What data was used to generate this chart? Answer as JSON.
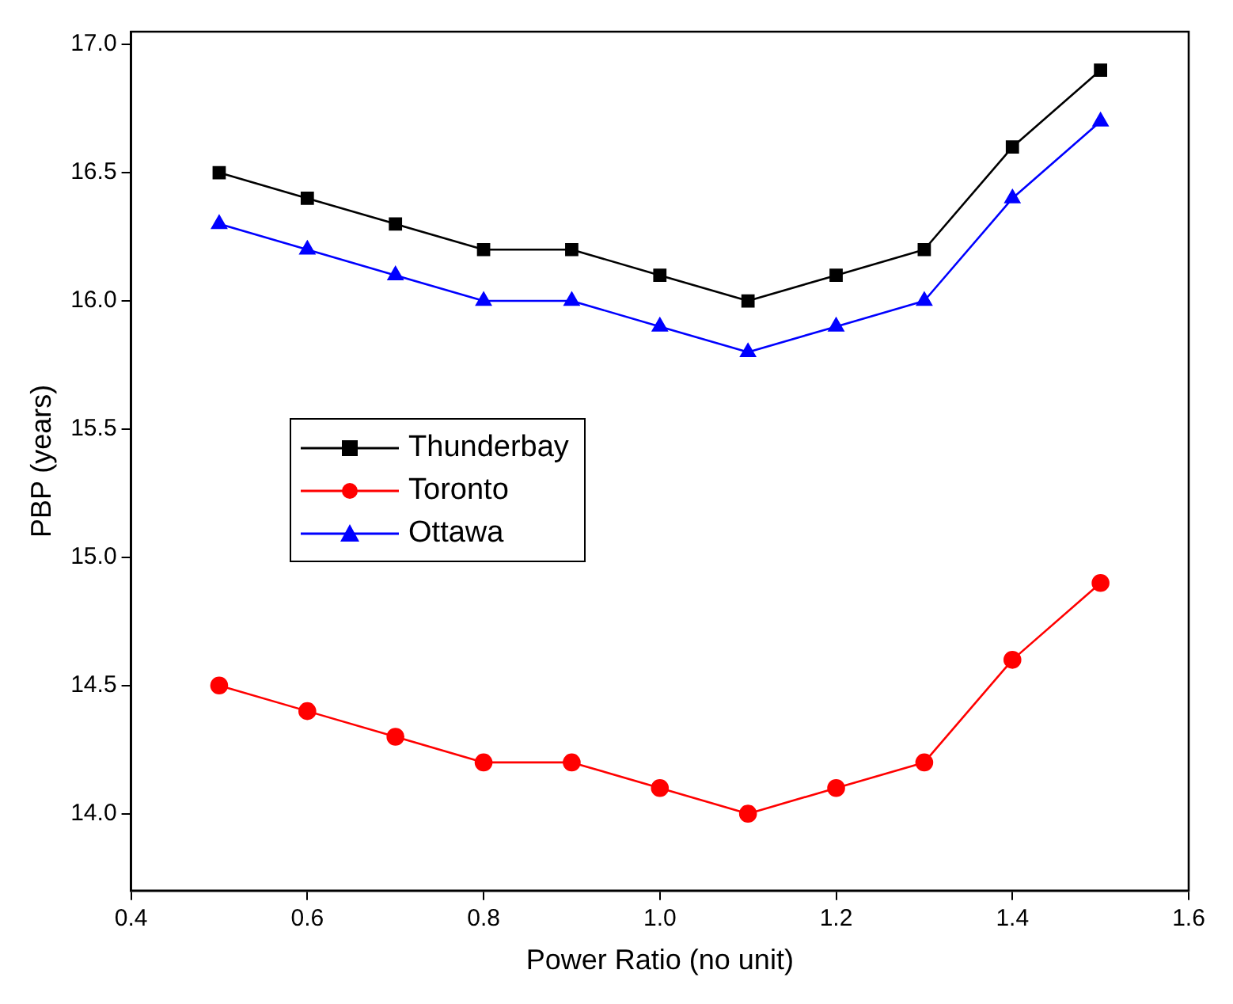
{
  "chart_data": {
    "type": "line",
    "xlabel": "Power Ratio (no unit)",
    "ylabel": "PBP (years)",
    "x": [
      0.5,
      0.6,
      0.7,
      0.8,
      0.9,
      1.0,
      1.1,
      1.2,
      1.3,
      1.4,
      1.5
    ],
    "series": [
      {
        "name": "Thunderbay",
        "color": "#000000",
        "marker": "square",
        "values": [
          16.5,
          16.4,
          16.3,
          16.2,
          16.2,
          16.1,
          16.0,
          16.1,
          16.2,
          16.6,
          16.9
        ]
      },
      {
        "name": "Toronto",
        "color": "#ff0000",
        "marker": "circle",
        "values": [
          14.5,
          14.4,
          14.3,
          14.2,
          14.2,
          14.1,
          14.0,
          14.1,
          14.2,
          14.6,
          14.9
        ]
      },
      {
        "name": "Ottawa",
        "color": "#0000ff",
        "marker": "triangle",
        "values": [
          16.3,
          16.2,
          16.1,
          16.0,
          16.0,
          15.9,
          15.8,
          15.9,
          16.0,
          16.4,
          16.7
        ]
      }
    ],
    "xlim": [
      0.4,
      1.6
    ],
    "xticks": [
      {
        "value": 0.4,
        "label": "0.4"
      },
      {
        "value": 0.6,
        "label": "0.6"
      },
      {
        "value": 0.8,
        "label": "0.8"
      },
      {
        "value": 1.0,
        "label": "1.0"
      },
      {
        "value": 1.2,
        "label": "1.2"
      },
      {
        "value": 1.4,
        "label": "1.4"
      },
      {
        "value": 1.6,
        "label": "1.6"
      }
    ],
    "ylim": [
      13.7,
      17.05
    ],
    "yticks": [
      {
        "value": 14,
        "label": "14.0"
      },
      {
        "value": 14.5,
        "label": "14.5"
      },
      {
        "value": 15,
        "label": "15.0"
      },
      {
        "value": 15.5,
        "label": "15.5"
      },
      {
        "value": 16,
        "label": "16.0"
      },
      {
        "value": 16.5,
        "label": "16.5"
      },
      {
        "value": 17,
        "label": "17.0"
      }
    ],
    "grid": false,
    "legend": "center left",
    "line_style": "solid"
  }
}
